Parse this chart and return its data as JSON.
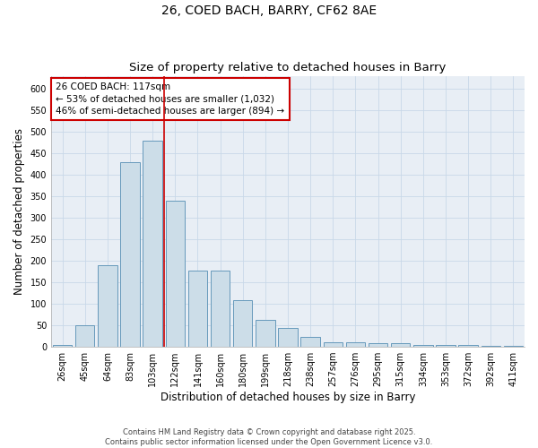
{
  "title_line1": "26, COED BACH, BARRY, CF62 8AE",
  "title_line2": "Size of property relative to detached houses in Barry",
  "xlabel": "Distribution of detached houses by size in Barry",
  "ylabel": "Number of detached properties",
  "categories": [
    "26sqm",
    "45sqm",
    "64sqm",
    "83sqm",
    "103sqm",
    "122sqm",
    "141sqm",
    "160sqm",
    "180sqm",
    "199sqm",
    "218sqm",
    "238sqm",
    "257sqm",
    "276sqm",
    "295sqm",
    "315sqm",
    "334sqm",
    "353sqm",
    "372sqm",
    "392sqm",
    "411sqm"
  ],
  "values": [
    5,
    50,
    190,
    430,
    480,
    340,
    178,
    178,
    108,
    62,
    44,
    24,
    11,
    11,
    8,
    8,
    5,
    4,
    5,
    3,
    3
  ],
  "bar_color": "#ccdde8",
  "bar_edge_color": "#6699bb",
  "red_line_x": 4.5,
  "annotation_text": "26 COED BACH: 117sqm\n← 53% of detached houses are smaller (1,032)\n46% of semi-detached houses are larger (894) →",
  "annotation_box_color": "white",
  "annotation_box_edge_color": "#cc0000",
  "ylim_max": 630,
  "yticks": [
    0,
    50,
    100,
    150,
    200,
    250,
    300,
    350,
    400,
    450,
    500,
    550,
    600
  ],
  "grid_color": "#c8d8e8",
  "background_color": "#e8eef5",
  "footer_line1": "Contains HM Land Registry data © Crown copyright and database right 2025.",
  "footer_line2": "Contains public sector information licensed under the Open Government Licence v3.0.",
  "title_fontsize": 10,
  "subtitle_fontsize": 9.5,
  "axis_label_fontsize": 8.5,
  "tick_fontsize": 7,
  "annotation_fontsize": 7.5,
  "footer_fontsize": 6
}
